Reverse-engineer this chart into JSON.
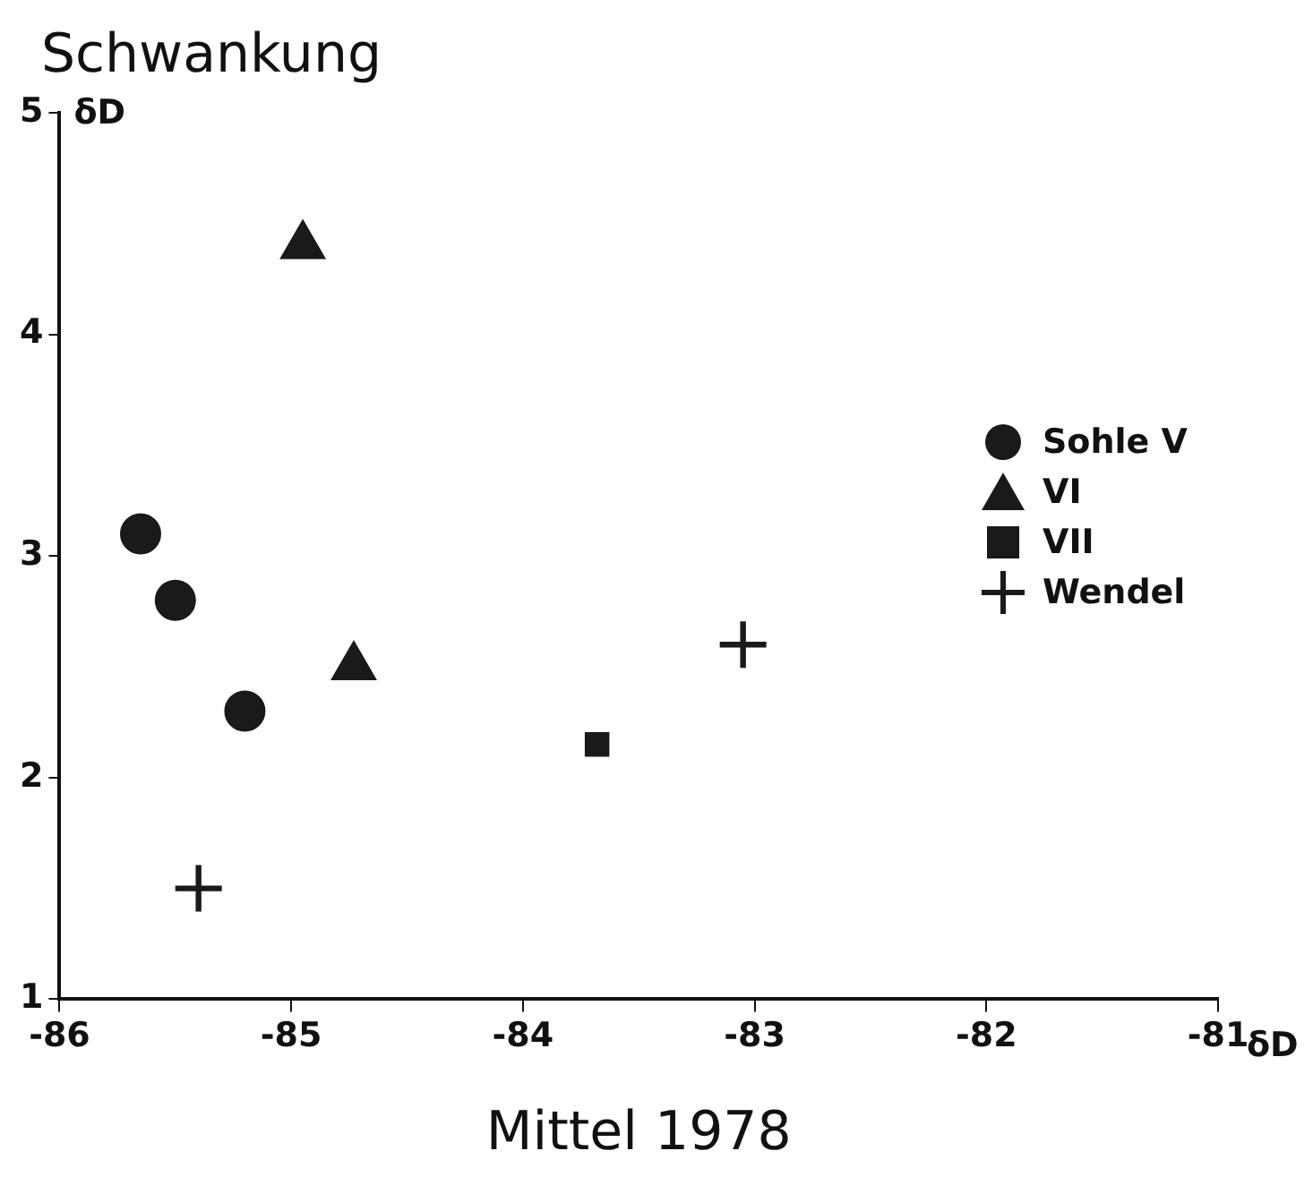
{
  "chart_data": {
    "type": "scatter",
    "xlabel": "Mittel 1978",
    "ylabel": "Schwankung",
    "annotations": [
      "δD",
      "δD"
    ],
    "xlim": [
      -86,
      -81
    ],
    "xticks": [
      -86,
      -85,
      -84,
      -83,
      -82,
      -81
    ],
    "ylim": [
      1,
      5
    ],
    "yticks": [
      1,
      2,
      3,
      4,
      5
    ],
    "grid": false,
    "legend": "top right",
    "series": [
      {
        "name": "Sohle V",
        "color": "#1a1a1a",
        "marker": "circle",
        "x": [
          -85.65,
          -85.5,
          -85.2
        ],
        "values": [
          3.1,
          2.8,
          2.3
        ]
      },
      {
        "name": "VI",
        "color": "#1a1a1a",
        "marker": "triangle",
        "x": [
          -84.95,
          -84.73
        ],
        "values": [
          4.4,
          2.5
        ]
      },
      {
        "name": "VII",
        "color": "#1a1a1a",
        "marker": "square",
        "x": [
          -83.68
        ],
        "values": [
          2.15
        ]
      },
      {
        "name": "Wendel",
        "color": "#1a1a1a",
        "marker": "cross",
        "x": [
          -85.4,
          -83.05
        ],
        "values": [
          1.5,
          2.6
        ]
      }
    ]
  }
}
